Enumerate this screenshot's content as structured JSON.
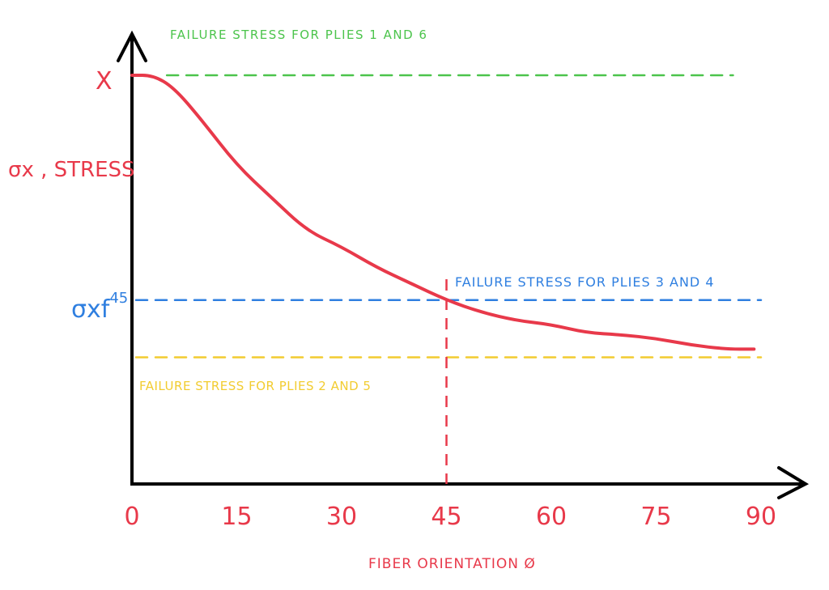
{
  "chart_data": {
    "type": "line",
    "title": "",
    "xlabel": "FIBER ORIENTATION Ø",
    "ylabel": "σx , STRESS",
    "xlim": [
      0,
      90
    ],
    "ylim": [
      0,
      1.0
    ],
    "x_ticks": [
      "0",
      "15",
      "30",
      "45",
      "60",
      "75",
      "90"
    ],
    "x_tick_values": [
      0,
      15,
      30,
      45,
      60,
      75,
      90
    ],
    "y_tick_labels": {
      "top": "X",
      "blue": "σxf",
      "blue_sup": "45"
    },
    "series": [
      {
        "name": "σx stress curve",
        "color": "#e8394a",
        "x": [
          0,
          3,
          6,
          10,
          15,
          20,
          25,
          30,
          35,
          40,
          45,
          50,
          55,
          60,
          65,
          70,
          75,
          80,
          85,
          89
        ],
        "y": [
          1.0,
          1.0,
          0.97,
          0.89,
          0.78,
          0.7,
          0.62,
          0.58,
          0.53,
          0.49,
          0.45,
          0.42,
          0.4,
          0.39,
          0.37,
          0.365,
          0.356,
          0.34,
          0.33,
          0.33
        ]
      }
    ],
    "reference_lines": [
      {
        "label": "FAILURE STRESS FOR PLIES 1 AND 6",
        "value": 1.0,
        "color": "#4cc44c",
        "from": 5,
        "to": 86
      },
      {
        "label": "FAILURE STRESS FOR PLIES 3 AND 4",
        "value": 0.45,
        "color": "#2f7fe0",
        "from": 0,
        "to": 90
      },
      {
        "label": "FAILURE STRESS FOR PLIES 2 AND 5",
        "value": 0.31,
        "color": "#f2cc30",
        "from": 0,
        "to": 90
      }
    ],
    "vertical_marker": {
      "x": 45,
      "color": "#e8394a"
    },
    "grid": false,
    "legend": "none"
  }
}
